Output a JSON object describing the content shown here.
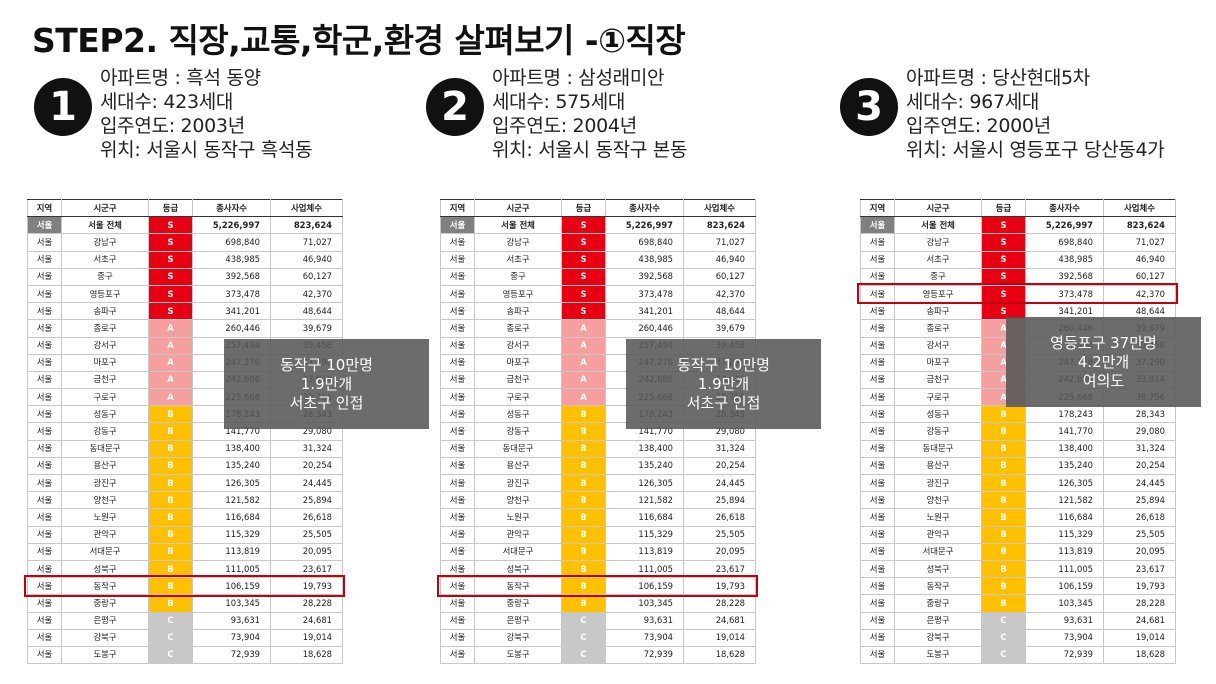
{
  "title": "STEP2. 직장,교통,학군,환경 살펴보기 -①직장",
  "apartments": [
    {
      "num": "1",
      "lines": [
        "아파트명 : 흑석 동양",
        "세대수: 423세대",
        "입주연도: 2003년",
        "위치: 서울시 동작구 흑석동"
      ]
    },
    {
      "num": "2",
      "lines": [
        "아파트명 : 삼성래미안",
        "세대수: 575세대",
        "입주연도: 2004년",
        "위치: 서울시 동작구 본동"
      ]
    },
    {
      "num": "3",
      "lines": [
        "아파트명 : 당산현대5차",
        "세대수: 967세대",
        "입주연도: 2000년",
        "위치: 서울시 영등포구 당산동4가"
      ]
    }
  ],
  "table": {
    "headers": [
      "지역",
      "시군구",
      "등급",
      "종사자수",
      "사업체수"
    ],
    "rows": [
      [
        "서울",
        "서울 전체",
        "S",
        "5,226,997",
        "823,624"
      ],
      [
        "서울",
        "강남구",
        "S",
        "698,840",
        "71,027"
      ],
      [
        "서울",
        "서초구",
        "S",
        "438,985",
        "46,940"
      ],
      [
        "서울",
        "중구",
        "S",
        "392,568",
        "60,127"
      ],
      [
        "서울",
        "영등포구",
        "S",
        "373,478",
        "42,370"
      ],
      [
        "서울",
        "송파구",
        "S",
        "341,201",
        "48,644"
      ],
      [
        "서울",
        "종로구",
        "A",
        "260,446",
        "39,679"
      ],
      [
        "서울",
        "강서구",
        "A",
        "257,494",
        "39,458"
      ],
      [
        "서울",
        "마포구",
        "A",
        "247,276",
        "37,290"
      ],
      [
        "서울",
        "금천구",
        "A",
        "242,686",
        "33,814"
      ],
      [
        "서울",
        "구로구",
        "A",
        "225,668",
        "38,756"
      ],
      [
        "서울",
        "성동구",
        "B",
        "178,243",
        "28,343"
      ],
      [
        "서울",
        "강동구",
        "B",
        "141,770",
        "29,080"
      ],
      [
        "서울",
        "동대문구",
        "B",
        "138,400",
        "31,324"
      ],
      [
        "서울",
        "용산구",
        "B",
        "135,240",
        "20,254"
      ],
      [
        "서울",
        "광진구",
        "B",
        "126,305",
        "24,445"
      ],
      [
        "서울",
        "양천구",
        "B",
        "121,582",
        "25,894"
      ],
      [
        "서울",
        "노원구",
        "B",
        "116,684",
        "26,618"
      ],
      [
        "서울",
        "관악구",
        "B",
        "115,329",
        "25,505"
      ],
      [
        "서울",
        "서대문구",
        "B",
        "113,819",
        "20,095"
      ],
      [
        "서울",
        "성북구",
        "B",
        "111,005",
        "23,617"
      ],
      [
        "서울",
        "동작구",
        "B",
        "106,159",
        "19,793"
      ],
      [
        "서울",
        "중랑구",
        "B",
        "103,345",
        "28,228"
      ],
      [
        "서울",
        "은평구",
        "C",
        "93,631",
        "24,681"
      ],
      [
        "서울",
        "강북구",
        "C",
        "73,904",
        "19,014"
      ],
      [
        "서울",
        "도봉구",
        "C",
        "72,939",
        "18,628"
      ]
    ]
  },
  "panels": [
    {
      "overlay": [
        "동작구 10만명",
        "1.9만개",
        "서초구 인접"
      ]
    },
    {
      "overlay": [
        "동작구 10만명",
        "1.9만개",
        "서초구 인접"
      ]
    },
    {
      "overlay": [
        "영등포구 37만명",
        "4.2만개",
        "여의도"
      ]
    }
  ]
}
